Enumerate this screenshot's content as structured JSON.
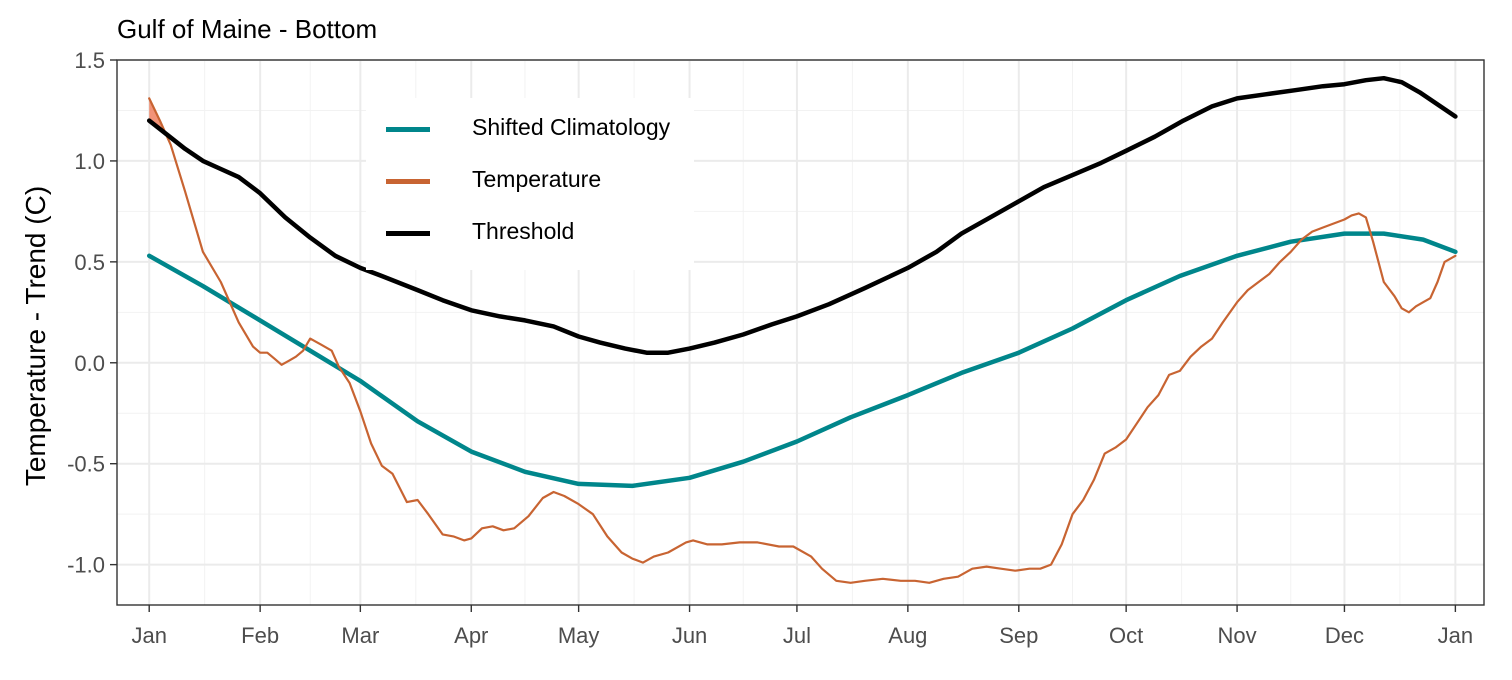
{
  "chart_data": {
    "type": "line",
    "title": "Gulf of Maine - Bottom",
    "ylabel": "Temperature - Trend (C)",
    "xlabel": "",
    "ylim": [
      -1.2,
      1.5
    ],
    "yticks": [
      -1.0,
      -0.5,
      0.0,
      0.5,
      1.0,
      1.5
    ],
    "ytick_labels": [
      "-1.0",
      "-0.5",
      "0.0",
      "0.5",
      "1.0",
      "1.5"
    ],
    "xlim": [
      -9,
      373
    ],
    "xtick_labels": [
      "Jan",
      "Feb",
      "Mar",
      "Apr",
      "May",
      "Jun",
      "Jul",
      "Aug",
      "Sep",
      "Oct",
      "Nov",
      "Dec",
      "Jan"
    ],
    "xtick_days": [
      0,
      31,
      59,
      90,
      120,
      151,
      181,
      212,
      243,
      273,
      304,
      334,
      365
    ],
    "grid": true,
    "legend_position": "top-left",
    "series": [
      {
        "name": "Shifted Climatology",
        "color": "#00868B",
        "x": [
          0,
          15,
          31,
          45,
          59,
          75,
          90,
          105,
          120,
          135,
          151,
          166,
          181,
          196,
          212,
          227,
          243,
          258,
          273,
          288,
          304,
          319,
          334,
          345,
          356,
          365
        ],
        "y": [
          0.53,
          0.38,
          0.21,
          0.06,
          -0.09,
          -0.29,
          -0.44,
          -0.54,
          -0.6,
          -0.61,
          -0.57,
          -0.49,
          -0.39,
          -0.27,
          -0.16,
          -0.05,
          0.05,
          0.17,
          0.31,
          0.43,
          0.53,
          0.6,
          0.64,
          0.64,
          0.61,
          0.55
        ]
      },
      {
        "name": "Temperature",
        "color": "#C86432",
        "x": [
          0,
          3,
          6,
          10,
          15,
          20,
          25,
          29,
          31,
          33,
          35,
          37,
          39,
          41,
          43,
          45,
          48,
          51,
          53,
          56,
          59,
          62,
          65,
          68,
          72,
          75,
          78,
          82,
          85,
          88,
          90,
          93,
          96,
          99,
          102,
          106,
          110,
          113,
          116,
          120,
          124,
          128,
          132,
          135,
          138,
          141,
          145,
          150,
          152,
          156,
          160,
          165,
          170,
          176,
          180,
          185,
          188,
          192,
          196,
          200,
          205,
          210,
          214,
          218,
          222,
          226,
          230,
          234,
          238,
          242,
          246,
          249,
          252,
          255,
          258,
          261,
          264,
          267,
          270,
          273,
          276,
          279,
          282,
          285,
          288,
          291,
          294,
          297,
          300,
          304,
          307,
          310,
          313,
          316,
          319,
          322,
          325,
          328,
          331,
          334,
          336,
          338,
          340,
          342,
          345,
          348,
          350,
          352,
          354,
          356,
          358,
          360,
          362,
          365
        ],
        "y": [
          1.31,
          1.2,
          1.08,
          0.85,
          0.55,
          0.4,
          0.2,
          0.08,
          0.05,
          0.05,
          0.02,
          -0.01,
          0.01,
          0.03,
          0.06,
          0.12,
          0.09,
          0.06,
          -0.02,
          -0.1,
          -0.24,
          -0.4,
          -0.51,
          -0.55,
          -0.69,
          -0.68,
          -0.75,
          -0.85,
          -0.86,
          -0.88,
          -0.87,
          -0.82,
          -0.81,
          -0.83,
          -0.82,
          -0.76,
          -0.67,
          -0.64,
          -0.66,
          -0.7,
          -0.75,
          -0.86,
          -0.94,
          -0.97,
          -0.99,
          -0.96,
          -0.94,
          -0.89,
          -0.88,
          -0.9,
          -0.9,
          -0.89,
          -0.89,
          -0.91,
          -0.91,
          -0.96,
          -1.02,
          -1.08,
          -1.09,
          -1.08,
          -1.07,
          -1.08,
          -1.08,
          -1.09,
          -1.07,
          -1.06,
          -1.02,
          -1.01,
          -1.02,
          -1.03,
          -1.02,
          -1.02,
          -1.0,
          -0.9,
          -0.75,
          -0.68,
          -0.58,
          -0.45,
          -0.42,
          -0.38,
          -0.3,
          -0.22,
          -0.16,
          -0.06,
          -0.04,
          0.03,
          0.08,
          0.12,
          0.2,
          0.3,
          0.36,
          0.4,
          0.44,
          0.5,
          0.55,
          0.61,
          0.65,
          0.67,
          0.69,
          0.71,
          0.73,
          0.74,
          0.72,
          0.6,
          0.4,
          0.33,
          0.27,
          0.25,
          0.28,
          0.3,
          0.32,
          0.4,
          0.5,
          0.53
        ]
      },
      {
        "name": "Threshold",
        "color": "#000000",
        "x": [
          0,
          5,
          10,
          15,
          20,
          25,
          31,
          38,
          45,
          52,
          59,
          65,
          75,
          82,
          90,
          98,
          105,
          113,
          120,
          126,
          133,
          139,
          145,
          151,
          158,
          166,
          174,
          181,
          190,
          200,
          212,
          220,
          227,
          235,
          243,
          250,
          258,
          266,
          273,
          281,
          289,
          297,
          304,
          312,
          320,
          328,
          334,
          340,
          345,
          350,
          355,
          360,
          365
        ],
        "y": [
          1.2,
          1.13,
          1.06,
          1.0,
          0.96,
          0.92,
          0.84,
          0.72,
          0.62,
          0.53,
          0.47,
          0.43,
          0.36,
          0.31,
          0.26,
          0.23,
          0.21,
          0.18,
          0.13,
          0.1,
          0.07,
          0.05,
          0.05,
          0.07,
          0.1,
          0.14,
          0.19,
          0.23,
          0.29,
          0.37,
          0.47,
          0.55,
          0.64,
          0.72,
          0.8,
          0.87,
          0.93,
          0.99,
          1.05,
          1.12,
          1.2,
          1.27,
          1.31,
          1.33,
          1.35,
          1.37,
          1.38,
          1.4,
          1.41,
          1.39,
          1.34,
          1.28,
          1.22
        ]
      }
    ]
  }
}
